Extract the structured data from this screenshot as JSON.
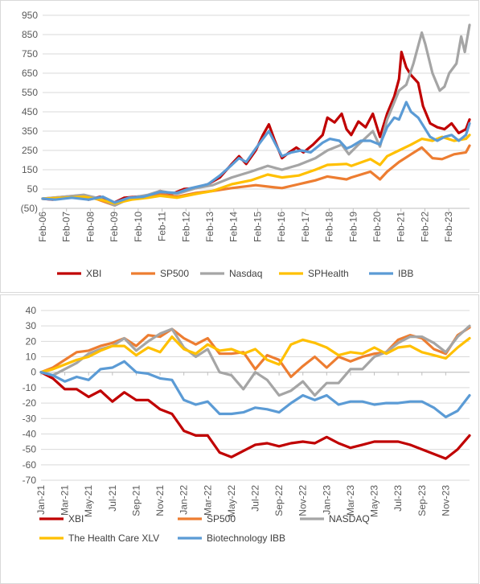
{
  "chart_data": [
    {
      "type": "line",
      "title": "",
      "xlabel": "",
      "ylabel": "",
      "ylim": [
        -50,
        950
      ],
      "y_tick_labels": [
        "(50)",
        "50",
        "150",
        "250",
        "350",
        "450",
        "550",
        "650",
        "750",
        "850",
        "950"
      ],
      "y_ticks": [
        -50,
        50,
        150,
        250,
        350,
        450,
        550,
        650,
        750,
        850,
        950
      ],
      "x_tick_labels": [
        "Feb-06",
        "Feb-07",
        "Feb-08",
        "Feb-09",
        "Feb-10",
        "Feb-11",
        "Feb-12",
        "Feb-13",
        "Feb-14",
        "Feb-15",
        "Feb-16",
        "Feb-17",
        "Feb-18",
        "Feb-19",
        "Feb-20",
        "Feb-21",
        "Feb-22",
        "Feb-23"
      ],
      "x_start": 2006.08,
      "x_end": 2023.95,
      "gridlines": "horizontal",
      "legend_position": "bottom",
      "series": [
        {
          "name": "XBI",
          "color": "#c00000",
          "points": [
            [
              2006.08,
              0
            ],
            [
              2006.5,
              -5
            ],
            [
              2007.0,
              5
            ],
            [
              2007.5,
              15
            ],
            [
              2008.0,
              -5
            ],
            [
              2008.5,
              10
            ],
            [
              2009.0,
              -25
            ],
            [
              2009.5,
              5
            ],
            [
              2010.0,
              10
            ],
            [
              2010.5,
              15
            ],
            [
              2011.0,
              40
            ],
            [
              2011.5,
              25
            ],
            [
              2012.0,
              50
            ],
            [
              2012.5,
              55
            ],
            [
              2013.0,
              75
            ],
            [
              2013.5,
              110
            ],
            [
              2014.0,
              180
            ],
            [
              2014.3,
              220
            ],
            [
              2014.6,
              180
            ],
            [
              2015.0,
              250
            ],
            [
              2015.3,
              330
            ],
            [
              2015.55,
              385
            ],
            [
              2015.8,
              300
            ],
            [
              2016.1,
              210
            ],
            [
              2016.4,
              240
            ],
            [
              2016.7,
              265
            ],
            [
              2017.0,
              240
            ],
            [
              2017.4,
              280
            ],
            [
              2017.8,
              330
            ],
            [
              2018.0,
              420
            ],
            [
              2018.3,
              395
            ],
            [
              2018.6,
              440
            ],
            [
              2018.8,
              360
            ],
            [
              2019.0,
              330
            ],
            [
              2019.3,
              400
            ],
            [
              2019.6,
              370
            ],
            [
              2019.9,
              440
            ],
            [
              2020.2,
              320
            ],
            [
              2020.5,
              440
            ],
            [
              2020.8,
              530
            ],
            [
              2021.0,
              620
            ],
            [
              2021.1,
              760
            ],
            [
              2021.3,
              680
            ],
            [
              2021.5,
              640
            ],
            [
              2021.8,
              600
            ],
            [
              2022.0,
              480
            ],
            [
              2022.3,
              390
            ],
            [
              2022.6,
              370
            ],
            [
              2022.9,
              360
            ],
            [
              2023.2,
              390
            ],
            [
              2023.5,
              340
            ],
            [
              2023.8,
              360
            ],
            [
              2023.95,
              410
            ]
          ]
        },
        {
          "name": "SP500",
          "color": "#ed7d31",
          "points": [
            [
              2006.08,
              0
            ],
            [
              2006.8,
              8
            ],
            [
              2007.5,
              15
            ],
            [
              2008.3,
              0
            ],
            [
              2009.1,
              -35
            ],
            [
              2009.6,
              -5
            ],
            [
              2010.1,
              10
            ],
            [
              2011.0,
              25
            ],
            [
              2011.7,
              10
            ],
            [
              2012.5,
              30
            ],
            [
              2013.2,
              40
            ],
            [
              2014.0,
              55
            ],
            [
              2015.0,
              70
            ],
            [
              2015.7,
              60
            ],
            [
              2016.1,
              55
            ],
            [
              2016.8,
              75
            ],
            [
              2017.5,
              95
            ],
            [
              2018.0,
              115
            ],
            [
              2018.8,
              100
            ],
            [
              2019.0,
              110
            ],
            [
              2019.8,
              140
            ],
            [
              2020.2,
              100
            ],
            [
              2020.5,
              140
            ],
            [
              2021.0,
              190
            ],
            [
              2021.5,
              230
            ],
            [
              2021.95,
              265
            ],
            [
              2022.4,
              210
            ],
            [
              2022.8,
              205
            ],
            [
              2023.3,
              230
            ],
            [
              2023.8,
              240
            ],
            [
              2023.95,
              275
            ]
          ]
        },
        {
          "name": "Nasdaq",
          "color": "#a5a5a5",
          "points": [
            [
              2006.08,
              0
            ],
            [
              2007.0,
              10
            ],
            [
              2007.8,
              20
            ],
            [
              2008.5,
              0
            ],
            [
              2009.1,
              -35
            ],
            [
              2009.8,
              5
            ],
            [
              2010.5,
              20
            ],
            [
              2011.0,
              40
            ],
            [
              2011.7,
              25
            ],
            [
              2012.5,
              55
            ],
            [
              2013.2,
              70
            ],
            [
              2014.0,
              110
            ],
            [
              2014.8,
              140
            ],
            [
              2015.5,
              170
            ],
            [
              2016.1,
              150
            ],
            [
              2016.8,
              175
            ],
            [
              2017.5,
              210
            ],
            [
              2018.0,
              250
            ],
            [
              2018.6,
              280
            ],
            [
              2018.9,
              230
            ],
            [
              2019.3,
              280
            ],
            [
              2019.9,
              350
            ],
            [
              2020.2,
              270
            ],
            [
              2020.5,
              410
            ],
            [
              2020.8,
              500
            ],
            [
              2021.0,
              560
            ],
            [
              2021.3,
              590
            ],
            [
              2021.6,
              700
            ],
            [
              2021.95,
              860
            ],
            [
              2022.1,
              800
            ],
            [
              2022.4,
              650
            ],
            [
              2022.7,
              560
            ],
            [
              2022.9,
              580
            ],
            [
              2023.1,
              650
            ],
            [
              2023.4,
              700
            ],
            [
              2023.6,
              840
            ],
            [
              2023.75,
              760
            ],
            [
              2023.95,
              900
            ]
          ]
        },
        {
          "name": "SPHealth",
          "color": "#ffc000",
          "points": [
            [
              2006.08,
              0
            ],
            [
              2007.0,
              5
            ],
            [
              2007.8,
              10
            ],
            [
              2008.5,
              -5
            ],
            [
              2009.1,
              -25
            ],
            [
              2009.8,
              -5
            ],
            [
              2010.5,
              5
            ],
            [
              2011.0,
              15
            ],
            [
              2011.7,
              5
            ],
            [
              2012.5,
              25
            ],
            [
              2013.2,
              40
            ],
            [
              2014.0,
              75
            ],
            [
              2014.8,
              95
            ],
            [
              2015.5,
              125
            ],
            [
              2016.1,
              110
            ],
            [
              2016.8,
              120
            ],
            [
              2017.5,
              150
            ],
            [
              2018.0,
              175
            ],
            [
              2018.8,
              180
            ],
            [
              2019.0,
              170
            ],
            [
              2019.8,
              205
            ],
            [
              2020.2,
              175
            ],
            [
              2020.5,
              220
            ],
            [
              2021.0,
              250
            ],
            [
              2021.5,
              280
            ],
            [
              2021.95,
              310
            ],
            [
              2022.4,
              300
            ],
            [
              2022.8,
              320
            ],
            [
              2023.3,
              300
            ],
            [
              2023.8,
              310
            ],
            [
              2023.95,
              330
            ]
          ]
        },
        {
          "name": "IBB",
          "color": "#5b9bd5",
          "points": [
            [
              2006.08,
              0
            ],
            [
              2006.6,
              -5
            ],
            [
              2007.3,
              5
            ],
            [
              2008.0,
              -5
            ],
            [
              2008.6,
              10
            ],
            [
              2009.1,
              -20
            ],
            [
              2009.7,
              5
            ],
            [
              2010.3,
              10
            ],
            [
              2011.0,
              35
            ],
            [
              2011.7,
              30
            ],
            [
              2012.3,
              55
            ],
            [
              2013.0,
              75
            ],
            [
              2013.5,
              120
            ],
            [
              2014.0,
              175
            ],
            [
              2014.3,
              210
            ],
            [
              2014.6,
              190
            ],
            [
              2015.0,
              260
            ],
            [
              2015.3,
              310
            ],
            [
              2015.55,
              350
            ],
            [
              2015.8,
              290
            ],
            [
              2016.1,
              220
            ],
            [
              2016.5,
              240
            ],
            [
              2016.9,
              250
            ],
            [
              2017.3,
              240
            ],
            [
              2017.8,
              290
            ],
            [
              2018.1,
              310
            ],
            [
              2018.5,
              300
            ],
            [
              2018.8,
              260
            ],
            [
              2019.0,
              270
            ],
            [
              2019.4,
              300
            ],
            [
              2019.8,
              300
            ],
            [
              2020.2,
              280
            ],
            [
              2020.5,
              370
            ],
            [
              2020.8,
              420
            ],
            [
              2021.0,
              410
            ],
            [
              2021.3,
              500
            ],
            [
              2021.5,
              450
            ],
            [
              2021.8,
              420
            ],
            [
              2022.0,
              380
            ],
            [
              2022.3,
              320
            ],
            [
              2022.6,
              300
            ],
            [
              2022.9,
              320
            ],
            [
              2023.2,
              330
            ],
            [
              2023.5,
              300
            ],
            [
              2023.8,
              330
            ],
            [
              2023.95,
              390
            ]
          ]
        }
      ]
    },
    {
      "type": "line",
      "title": "",
      "xlabel": "",
      "ylabel": "",
      "ylim": [
        -70,
        40
      ],
      "y_tick_labels": [
        "40",
        "30",
        "20",
        "10",
        "0",
        "-10",
        "-20",
        "-30",
        "-40",
        "-50",
        "-60",
        "-70"
      ],
      "y_ticks": [
        40,
        30,
        20,
        10,
        0,
        -10,
        -20,
        -30,
        -40,
        -50,
        -60,
        -70
      ],
      "x_tick_labels": [
        "Jan-21",
        "Mar-21",
        "May-21",
        "Jul-21",
        "Sep-21",
        "Nov-21",
        "Jan-22",
        "Mar-22",
        "May-22",
        "Jul-22",
        "Sep-22",
        "Nov-22",
        "Jan-23",
        "Mar-23",
        "May-23",
        "Jul-23",
        "Sep-23",
        "Nov-23"
      ],
      "x_count": 37,
      "gridlines": "horizontal",
      "legend_position": "bottom",
      "series": [
        {
          "name": "XBI",
          "color": "#c00000",
          "values": [
            0,
            -4,
            -11,
            -11,
            -16,
            -12,
            -19,
            -13,
            -18,
            -18,
            -24,
            -27,
            -38,
            -41,
            -41,
            -52,
            -55,
            -51,
            -47,
            -46,
            -48,
            -46,
            -45,
            -46,
            -42,
            -46,
            -49,
            -47,
            -45,
            -45,
            -45,
            -47,
            -50,
            -53,
            -56,
            -50,
            -41
          ]
        },
        {
          "name": "SP500",
          "color": "#ed7d31",
          "values": [
            0,
            3,
            8,
            13,
            14,
            17,
            19,
            22,
            17,
            24,
            23,
            28,
            22,
            18,
            22,
            12,
            12,
            13,
            2,
            11,
            8,
            -3,
            4,
            10,
            3,
            10,
            7,
            10,
            12,
            13,
            21,
            24,
            22,
            15,
            12,
            24,
            29
          ]
        },
        {
          "name": "NASDAQ",
          "color": "#a5a5a5",
          "values": [
            0,
            -2,
            2,
            6,
            12,
            15,
            17,
            22,
            14,
            20,
            25,
            28,
            16,
            10,
            15,
            0,
            -2,
            -11,
            0,
            -5,
            -15,
            -12,
            -6,
            -15,
            -7,
            -7,
            2,
            2,
            10,
            13,
            19,
            23,
            23,
            19,
            13,
            23,
            30
          ]
        },
        {
          "name": "The Health Care XLV",
          "color": "#ffc000",
          "values": [
            0,
            2,
            5,
            8,
            10,
            14,
            17,
            17,
            11,
            16,
            13,
            23,
            15,
            12,
            18,
            14,
            15,
            12,
            15,
            8,
            5,
            18,
            21,
            19,
            16,
            11,
            13,
            12,
            16,
            12,
            16,
            17,
            13,
            11,
            9,
            16,
            22
          ]
        },
        {
          "name": "Biotechnology IBB",
          "color": "#5b9bd5",
          "values": [
            0,
            -2,
            -6,
            -3,
            -5,
            2,
            3,
            7,
            0,
            -1,
            -4,
            -5,
            -18,
            -21,
            -19,
            -27,
            -27,
            -26,
            -23,
            -24,
            -26,
            -20,
            -15,
            -18,
            -15,
            -21,
            -19,
            -19,
            -21,
            -20,
            -20,
            -19,
            -19,
            -23,
            -29,
            -25,
            -15
          ]
        }
      ]
    }
  ]
}
